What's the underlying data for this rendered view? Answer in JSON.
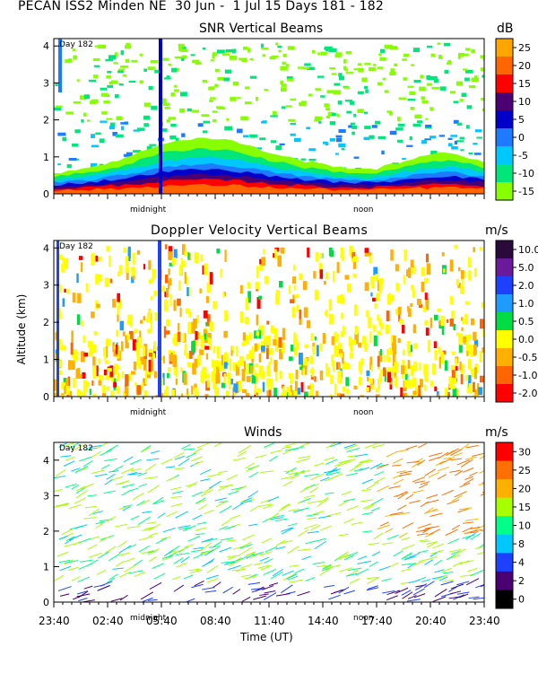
{
  "header": "PECAN ISS2 Minden NE  30 Jun -  1 Jul 15 Days 181 - 182",
  "y_axis_label": "Altitude (km)",
  "x_axis_label": "Time (UT)",
  "x_tick_labels": [
    "23:40",
    "02:40",
    "05:40",
    "08:40",
    "11:40",
    "14:40",
    "17:40",
    "20:40",
    "23:40"
  ],
  "chart_data": [
    {
      "type": "heatmap",
      "title": "SNR Vertical Beams",
      "unit": "dB",
      "day_label": "Day 182",
      "marker_labels": [
        "midnight",
        "noon"
      ],
      "y_ticks": [
        "0",
        "1",
        "2",
        "3",
        "4"
      ],
      "ylim": [
        0,
        4.2
      ],
      "colorbar": {
        "labels": [
          "25",
          "20",
          "15",
          "10",
          "5",
          "0",
          "-5",
          "-10",
          "-15"
        ],
        "colors": [
          "#ffa500",
          "#ff6600",
          "#ff0000",
          "#4a0070",
          "#0000c8",
          "#1e7bff",
          "#00c8ff",
          "#00e67a",
          "#88ff00"
        ]
      },
      "profile_km": [
        0.35,
        0.45,
        0.6,
        0.85,
        0.95,
        0.9,
        0.7,
        0.55,
        0.45,
        0.42,
        0.6,
        0.7,
        0.55
      ]
    },
    {
      "type": "heatmap",
      "title": "Doppler Velocity Vertical Beams",
      "unit": "m/s",
      "day_label": "Day 182",
      "marker_labels": [
        "midnight",
        "noon"
      ],
      "y_ticks": [
        "0",
        "1",
        "2",
        "3",
        "4"
      ],
      "ylim": [
        0,
        4.2
      ],
      "colorbar": {
        "labels": [
          "10.0",
          "5.0",
          "2.0",
          "1.0",
          "0.5",
          "0.0",
          "-0.5",
          "-1.0",
          "-2.0"
        ],
        "colors": [
          "#2a0a3a",
          "#6a1a9a",
          "#1e40ff",
          "#1e9bff",
          "#00dd44",
          "#ffff00",
          "#ffb000",
          "#ff6600",
          "#ff0000"
        ]
      }
    },
    {
      "type": "scatter",
      "title": "Winds",
      "unit": "m/s",
      "day_label": "Day 182",
      "marker_labels": [
        "midnight",
        "noon"
      ],
      "y_ticks": [
        "0",
        "1",
        "2",
        "3",
        "4"
      ],
      "ylim": [
        0,
        4.5
      ],
      "colorbar": {
        "labels": [
          "30",
          "25",
          "20",
          "15",
          "10",
          "8",
          "4",
          "2",
          "0"
        ],
        "colors": [
          "#ff0000",
          "#ff7000",
          "#ffb000",
          "#a8ff00",
          "#00ff88",
          "#00c8ff",
          "#1e40ff",
          "#4a0070",
          "#000000"
        ]
      }
    }
  ]
}
